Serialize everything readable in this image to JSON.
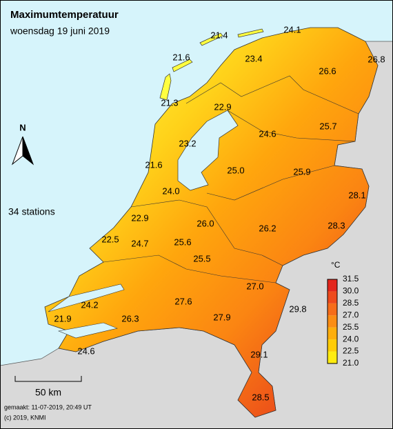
{
  "title": "Maximumtemperatuur",
  "subtitle": "woensdag 19 juni 2019",
  "station_count": "34 stations",
  "stations": [
    "21.4",
    "24.1",
    "26.8",
    "21.6",
    "23.4",
    "26.6",
    "21.3",
    "22.9",
    "24.6",
    "25.7",
    "23.2",
    "21.6",
    "25.0",
    "25.9",
    "24.0",
    "28.1",
    "22.9",
    "26.0",
    "26.2",
    "28.3",
    "22.5",
    "24.7",
    "25.6",
    "25.5",
    "27.0",
    "24.2",
    "27.6",
    "29.8",
    "21.9",
    "26.3",
    "27.9",
    "24.6",
    "29.1",
    "28.5"
  ],
  "legend": {
    "unit": "°C",
    "labels": [
      "31.5",
      "30.0",
      "28.5",
      "27.0",
      "25.5",
      "24.0",
      "22.5",
      "21.0"
    ]
  },
  "north": "N",
  "scale": "50 km",
  "footer": [
    "gemaakt: 11-07-2019, 20:49 UT",
    "(c) 2019, KNMI"
  ]
}
